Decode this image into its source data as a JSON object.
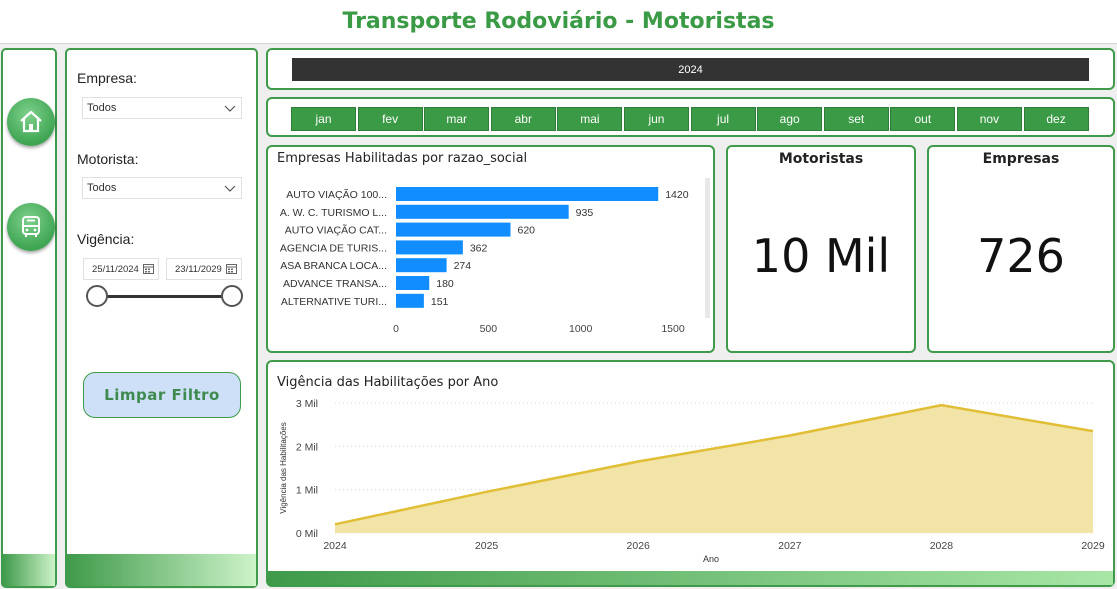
{
  "header": {
    "title": "Transporte Rodoviário - Motoristas"
  },
  "nav": {
    "items": [
      {
        "icon": "home-icon"
      },
      {
        "icon": "bus-icon"
      }
    ]
  },
  "filters": {
    "empresa_label": "Empresa:",
    "empresa_value": "Todos",
    "motorista_label": "Motorista:",
    "motorista_value": "Todos",
    "vigencia_label": "Vigência:",
    "date_start": "25/11/2024",
    "date_end": "23/11/2029",
    "clear_button": "Limpar Filtro"
  },
  "year_selector": {
    "value": "2024"
  },
  "months": [
    "jan",
    "fev",
    "mar",
    "abr",
    "mai",
    "jun",
    "jul",
    "ago",
    "set",
    "out",
    "nov",
    "dez"
  ],
  "bar_chart": {
    "title": "Empresas Habilitadas por razao_social"
  },
  "kpis": {
    "motoristas_label": "Motoristas",
    "motoristas_value": "10 Mil",
    "empresas_label": "Empresas",
    "empresas_value": "726"
  },
  "area_chart": {
    "title": "Vigência das Habilitações por Ano"
  },
  "colors": {
    "accent_green": "#3a9a45",
    "bar_blue": "#118dff",
    "area_fill": "#f2e3a7",
    "area_line": "#e0be35"
  },
  "chart_data": [
    {
      "type": "bar",
      "title": "Empresas Habilitadas por razao_social",
      "categories": [
        "AUTO VIAÇÃO 100...",
        "A. W. C. TURISMO L...",
        "AUTO VIAÇÃO CAT...",
        "AGENCIA DE TURIS...",
        "ASA BRANCA LOCA...",
        "ADVANCE TRANSA...",
        "ALTERNATIVE TURI..."
      ],
      "values": [
        1420,
        935,
        620,
        362,
        274,
        180,
        151
      ],
      "xlim": [
        0,
        1500
      ],
      "xticks": [
        0,
        500,
        1000,
        1500
      ],
      "orientation": "horizontal"
    },
    {
      "type": "area",
      "title": "Vigência das Habilitações por Ano",
      "xlabel": "Ano",
      "ylabel": "Vigência das Habilitações",
      "x": [
        2024,
        2025,
        2026,
        2027,
        2028,
        2029
      ],
      "values": [
        200,
        950,
        1650,
        2250,
        2950,
        2350
      ],
      "ylim": [
        0,
        3000
      ],
      "yticks": [
        0,
        1000,
        2000,
        3000
      ],
      "ytick_labels": [
        "0 Mil",
        "1 Mil",
        "2 Mil",
        "3 Mil"
      ]
    }
  ]
}
